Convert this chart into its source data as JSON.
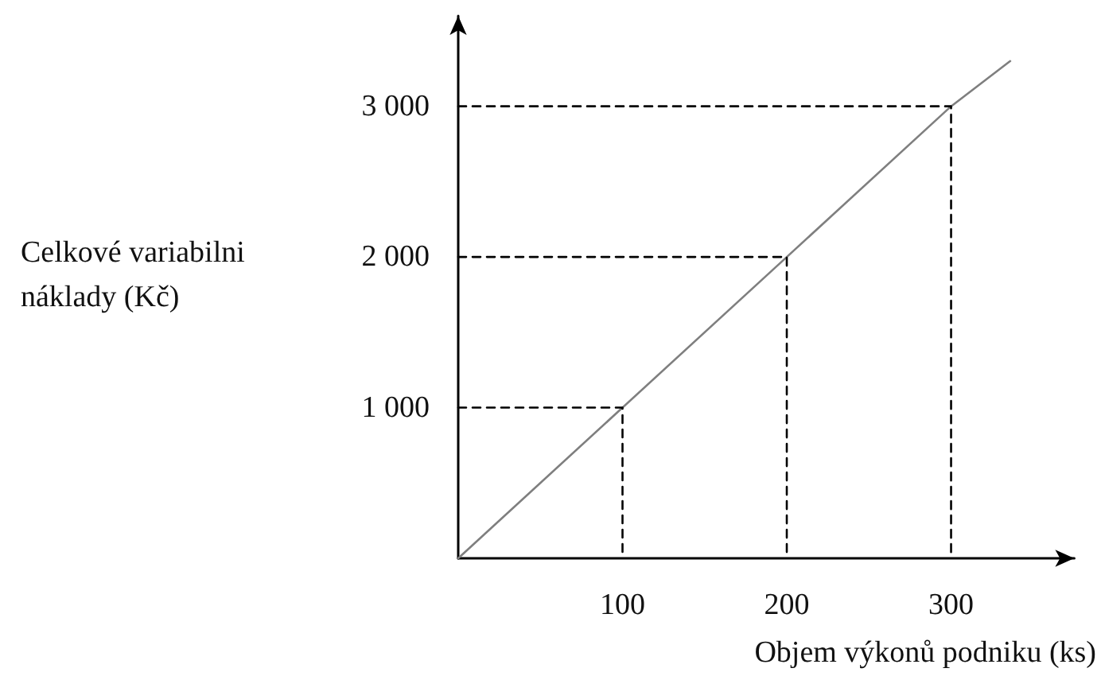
{
  "chart_data": {
    "type": "line",
    "xlabel": "Objem výkonů podniku (ks)",
    "ylabel": "Celkové variabilni náklady (Kč)",
    "series": [
      {
        "color": "#7f7f7f",
        "x": [
          0,
          100,
          200,
          300,
          336
        ],
        "values": [
          0,
          1000,
          2000,
          3000,
          3300
        ]
      },
      {
        "color": "#000000",
        "line_style": "dashed",
        "x": [
          0,
          100,
          100
        ],
        "values": [
          1000,
          1000,
          0
        ]
      },
      {
        "color": "#000000",
        "line_style": "dashed",
        "x": [
          0,
          200,
          200
        ],
        "values": [
          2000,
          2000,
          0
        ]
      },
      {
        "color": "#000000",
        "line_style": "dashed",
        "x": [
          0,
          300,
          300
        ],
        "values": [
          3000,
          3000,
          0
        ]
      }
    ],
    "xlim": [
      0,
      375
    ],
    "ylim": [
      0,
      3600
    ],
    "xticks": [
      100,
      200,
      300
    ],
    "yticks": [
      {
        "value": 1000,
        "label": "1 000"
      },
      {
        "value": 2000,
        "label": "2 000"
      },
      {
        "value": 3000,
        "label": "3 000"
      }
    ],
    "marker": "none",
    "line_style": "solid"
  }
}
